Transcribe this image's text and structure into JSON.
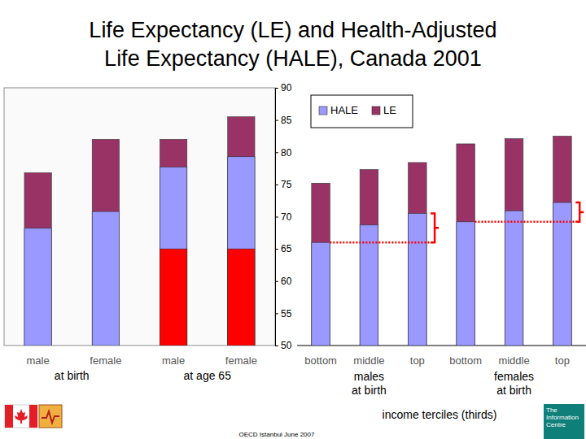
{
  "chart_data": {
    "type": "bar",
    "title": "Life Expectancy (LE) and Health-Adjusted\nLife Expectancy (HALE), Canada 2001",
    "categories": [
      "male",
      "female",
      "male",
      "female",
      "bottom",
      "middle",
      "top",
      "bottom",
      "middle",
      "top"
    ],
    "groups": [
      {
        "label": "at birth",
        "span": [
          0,
          1
        ]
      },
      {
        "label": "at age 65",
        "span": [
          2,
          3
        ]
      },
      {
        "label": "males at birth",
        "span": [
          4,
          6
        ]
      },
      {
        "label": "females at birth",
        "span": [
          7,
          9
        ]
      }
    ],
    "series": [
      {
        "name": "HALE",
        "color": "#9999ff",
        "values": [
          68.2,
          70.8,
          77.7,
          79.3,
          66.0,
          68.7,
          70.5,
          69.2,
          70.9,
          72.2
        ]
      },
      {
        "name": "LE",
        "color": "#993366",
        "values": [
          76.8,
          82.0,
          82.0,
          85.5,
          75.2,
          77.3,
          78.4,
          81.3,
          82.1,
          82.5
        ]
      },
      {
        "color": "#ff0000",
        "values": [
          null,
          null,
          65,
          65,
          null,
          null,
          null,
          null,
          null,
          null
        ]
      }
    ],
    "stacked": false,
    "ylim": [
      50,
      90
    ],
    "yticks": [
      50,
      55,
      60,
      65,
      70,
      75,
      80,
      85,
      90
    ],
    "legend": "top-left",
    "xlabel": "income terciles (thirds)",
    "source": "OECD Istanbul June 2007",
    "logo": "The Information Centre"
  }
}
